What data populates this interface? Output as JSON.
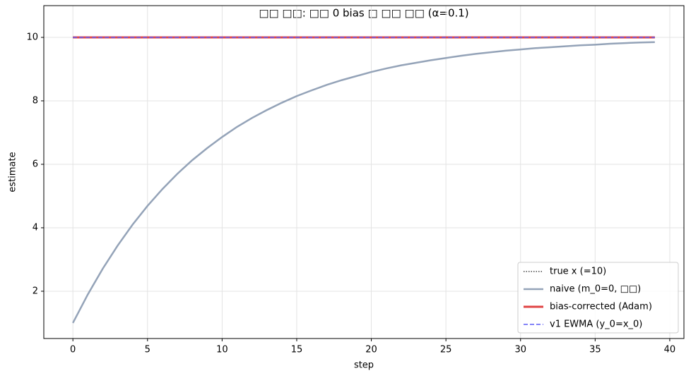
{
  "chart_data": {
    "type": "line",
    "title": "□□ □□: □□ 0 bias □ □□ □□ (α=0.1)",
    "x_label": "step",
    "y_label": "estimate",
    "x": [
      0,
      1,
      2,
      3,
      4,
      5,
      6,
      7,
      8,
      9,
      10,
      11,
      12,
      13,
      14,
      15,
      16,
      17,
      18,
      19,
      20,
      21,
      22,
      23,
      24,
      25,
      26,
      27,
      28,
      29,
      30,
      31,
      32,
      33,
      34,
      35,
      36,
      37,
      38,
      39
    ],
    "series": [
      {
        "name": "true x (=10)",
        "color": "#222222",
        "style": "dotted",
        "width": 1.2,
        "values": [
          10,
          10,
          10,
          10,
          10,
          10,
          10,
          10,
          10,
          10,
          10,
          10,
          10,
          10,
          10,
          10,
          10,
          10,
          10,
          10,
          10,
          10,
          10,
          10,
          10,
          10,
          10,
          10,
          10,
          10,
          10,
          10,
          10,
          10,
          10,
          10,
          10,
          10,
          10,
          10
        ]
      },
      {
        "name": "naive (m_0=0, □□)",
        "color": "#94a3b8",
        "style": "solid",
        "width": 2.5,
        "values": [
          1,
          1.9,
          2.71,
          3.44,
          4.1,
          4.69,
          5.22,
          5.7,
          6.13,
          6.51,
          6.86,
          7.18,
          7.46,
          7.71,
          7.94,
          8.15,
          8.33,
          8.5,
          8.65,
          8.78,
          8.91,
          9.02,
          9.12,
          9.2,
          9.28,
          9.35,
          9.42,
          9.48,
          9.53,
          9.58,
          9.62,
          9.66,
          9.69,
          9.72,
          9.75,
          9.77,
          9.8,
          9.82,
          9.84,
          9.85
        ]
      },
      {
        "name": "bias-corrected (Adam)",
        "color": "#e04545",
        "style": "solid",
        "width": 3,
        "values": [
          10,
          10,
          10,
          10,
          10,
          10,
          10,
          10,
          10,
          10,
          10,
          10,
          10,
          10,
          10,
          10,
          10,
          10,
          10,
          10,
          10,
          10,
          10,
          10,
          10,
          10,
          10,
          10,
          10,
          10,
          10,
          10,
          10,
          10,
          10,
          10,
          10,
          10,
          10,
          10
        ]
      },
      {
        "name": "v1 EWMA (y_0=x_0)",
        "color": "#5a5af5",
        "style": "dashed",
        "width": 1.6,
        "values": [
          10,
          10,
          10,
          10,
          10,
          10,
          10,
          10,
          10,
          10,
          10,
          10,
          10,
          10,
          10,
          10,
          10,
          10,
          10,
          10,
          10,
          10,
          10,
          10,
          10,
          10,
          10,
          10,
          10,
          10,
          10,
          10,
          10,
          10,
          10,
          10,
          10,
          10,
          10,
          10
        ]
      }
    ],
    "xlim": [
      -1.95,
      40.95
    ],
    "ylim": [
      0.51,
      11.0
    ],
    "xticks": [
      0,
      5,
      10,
      15,
      20,
      25,
      30,
      35,
      40
    ],
    "yticks": [
      2,
      4,
      6,
      8,
      10
    ],
    "grid": true,
    "legend": "lower right"
  }
}
